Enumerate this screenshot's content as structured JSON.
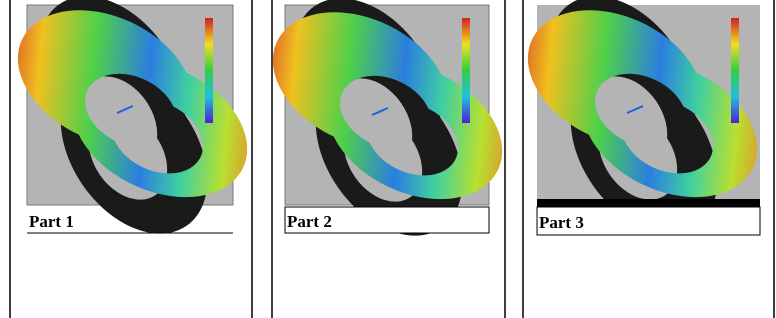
{
  "cells": [
    {
      "caption": "Part 1"
    },
    {
      "caption": "Part 2"
    },
    {
      "caption": "Part 3"
    }
  ]
}
